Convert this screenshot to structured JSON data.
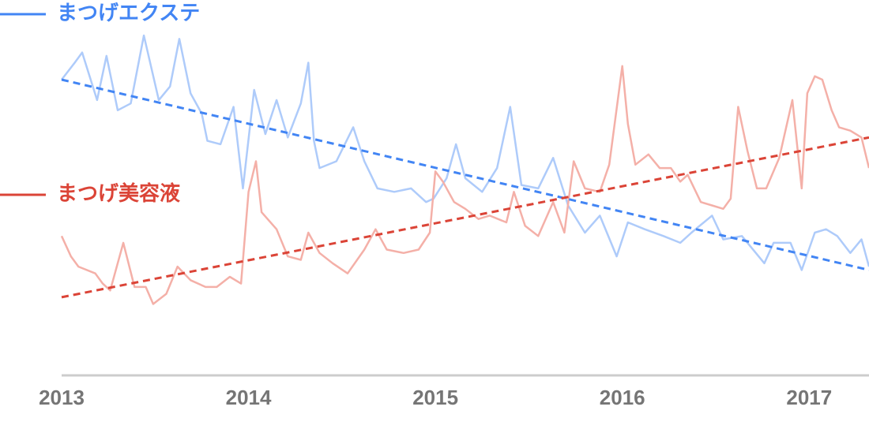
{
  "chart_data": {
    "type": "line",
    "xlim": [
      2013,
      2017.32
    ],
    "ylim": [
      0,
      100
    ],
    "xticks": [
      2013,
      2014,
      2015,
      2016,
      2017
    ],
    "series": [
      {
        "name": "まつげエクステ",
        "color": "#4285f4",
        "line_color": "#aecbfa",
        "x": [
          2013.0,
          2013.07,
          2013.11,
          2013.19,
          2013.24,
          2013.3,
          2013.37,
          2013.44,
          2013.52,
          2013.58,
          2013.63,
          2013.69,
          2013.75,
          2013.78,
          2013.85,
          2013.92,
          2013.97,
          2014.03,
          2014.09,
          2014.15,
          2014.21,
          2014.28,
          2014.32,
          2014.35,
          2014.38,
          2014.47,
          2014.56,
          2014.62,
          2014.69,
          2014.78,
          2014.87,
          2014.95,
          2014.99,
          2015.06,
          2015.11,
          2015.16,
          2015.25,
          2015.33,
          2015.4,
          2015.46,
          2015.55,
          2015.63,
          2015.71,
          2015.8,
          2015.88,
          2015.97,
          2016.03,
          2016.12,
          2016.22,
          2016.31,
          2016.37,
          2016.48,
          2016.54,
          2016.64,
          2016.76,
          2016.81,
          2016.9,
          2016.96,
          2017.03,
          2017.09,
          2017.15,
          2017.22,
          2017.28,
          2017.32
        ],
        "values": [
          87,
          92,
          95,
          81,
          94,
          78,
          80,
          100,
          81,
          85,
          99,
          83,
          77,
          69,
          68,
          79,
          55,
          84,
          71,
          81,
          70,
          80,
          92,
          69,
          61,
          63,
          73,
          63,
          55,
          54,
          55,
          51,
          52,
          58,
          68,
          58,
          54,
          61,
          79,
          56,
          55,
          64,
          50,
          42,
          47,
          35,
          45,
          43,
          41,
          39,
          42,
          47,
          40,
          41,
          33,
          39,
          39,
          31,
          42,
          43,
          41,
          36,
          40,
          32
        ],
        "trend": {
          "x": [
            2013,
            2017.32
          ],
          "values": [
            87,
            31
          ]
        }
      },
      {
        "name": "まつげ美容液",
        "color": "#db4437",
        "line_color": "#f4b0a8",
        "x": [
          2013.0,
          2013.05,
          2013.09,
          2013.18,
          2013.22,
          2013.26,
          2013.33,
          2013.39,
          2013.45,
          2013.49,
          2013.56,
          2013.62,
          2013.69,
          2013.77,
          2013.83,
          2013.9,
          2013.96,
          2014.0,
          2014.04,
          2014.07,
          2014.15,
          2014.21,
          2014.28,
          2014.32,
          2014.38,
          2014.45,
          2014.53,
          2014.62,
          2014.68,
          2014.74,
          2014.83,
          2014.91,
          2014.97,
          2015.0,
          2015.04,
          2015.1,
          2015.16,
          2015.23,
          2015.29,
          2015.38,
          2015.42,
          2015.48,
          2015.55,
          2015.63,
          2015.69,
          2015.74,
          2015.8,
          2015.88,
          2015.93,
          2016.0,
          2016.03,
          2016.07,
          2016.14,
          2016.2,
          2016.26,
          2016.31,
          2016.35,
          2016.42,
          2016.48,
          2016.54,
          2016.58,
          2016.62,
          2016.67,
          2016.72,
          2016.77,
          2016.84,
          2016.91,
          2016.96,
          2016.99,
          2017.03,
          2017.07,
          2017.12,
          2017.16,
          2017.22,
          2017.28,
          2017.32
        ],
        "values": [
          41,
          35,
          32,
          30,
          27,
          25,
          39,
          26,
          26,
          21,
          24,
          32,
          28,
          26,
          26,
          29,
          27,
          54,
          63,
          48,
          43,
          35,
          34,
          42,
          36,
          33,
          30,
          37,
          43,
          37,
          36,
          37,
          42,
          60,
          57,
          51,
          49,
          46,
          47,
          45,
          54,
          44,
          41,
          51,
          42,
          63,
          55,
          54,
          62,
          91,
          74,
          62,
          65,
          61,
          61,
          57,
          59,
          51,
          50,
          49,
          52,
          79,
          66,
          55,
          55,
          64,
          81,
          55,
          83,
          88,
          87,
          78,
          73,
          72,
          70,
          61
        ],
        "trend": {
          "x": [
            2013,
            2017.32
          ],
          "values": [
            23,
            70
          ]
        }
      }
    ]
  }
}
